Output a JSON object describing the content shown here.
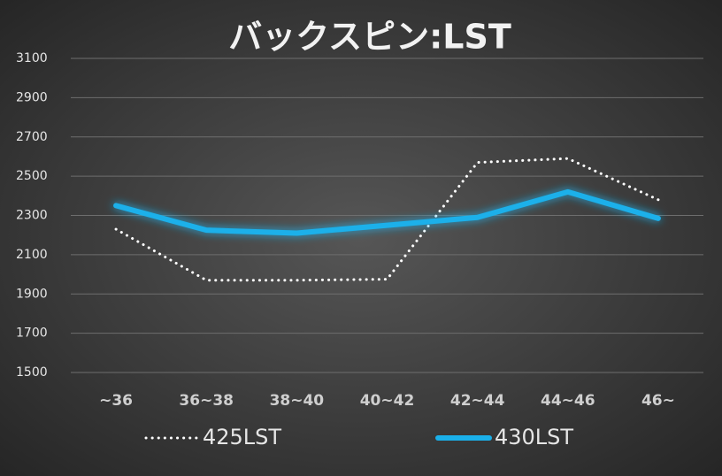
{
  "chart_data": {
    "type": "line",
    "title": "バックスピン:LST",
    "categories": [
      "~36",
      "36~38",
      "38~40",
      "40~42",
      "42~44",
      "44~46",
      "46~"
    ],
    "series": [
      {
        "name": "425LST",
        "color": "#ffffff",
        "style": "dotted",
        "values": [
          2230,
          1970,
          1970,
          1975,
          2570,
          2590,
          2380
        ]
      },
      {
        "name": "430LST",
        "color": "#1ab0ea",
        "style": "solid",
        "values": [
          2350,
          2225,
          2210,
          2250,
          2290,
          2420,
          2285
        ]
      }
    ],
    "ylim": [
      1500,
      3100
    ],
    "yticks": [
      1500,
      1700,
      1900,
      2100,
      2300,
      2500,
      2700,
      2900,
      3100
    ],
    "grid": true,
    "legend": "bottom"
  }
}
